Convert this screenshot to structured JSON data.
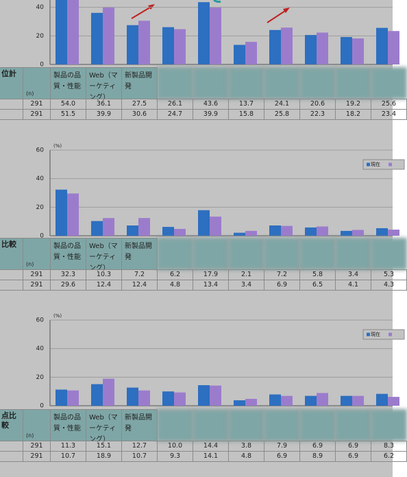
{
  "chart_data": [
    {
      "type": "bar",
      "ylim": [
        0,
        60
      ],
      "yticks": [
        0,
        20,
        40
      ],
      "grid": true,
      "categories": [
        "製品の品質・性能",
        "Web（マーケティング）",
        "新製品開発",
        null,
        null,
        null,
        null,
        null,
        null,
        null
      ],
      "series": [
        {
          "color": "#2d6fc0",
          "values": [
            54.0,
            36.1,
            27.5,
            26.1,
            43.6,
            13.7,
            24.1,
            20.6,
            19.2,
            25.6
          ],
          "value_labels": [
            "54.0",
            "36.1",
            "27.5",
            "26.1",
            "43.6",
            "13.7",
            "24.1",
            "20.6",
            "19.2",
            "25.6"
          ]
        },
        {
          "color": "#9b7ccc",
          "values": [
            51.5,
            39.9,
            30.6,
            24.7,
            39.9,
            15.8,
            25.8,
            22.3,
            18.2,
            23.4
          ],
          "value_labels": [
            "51.5",
            "39.9",
            "30.6",
            "24.7",
            "39.9",
            "15.8",
            "25.8",
            "22.3",
            "18.2",
            "23.4"
          ]
        }
      ]
    },
    {
      "type": "bar",
      "ylim": [
        0,
        60
      ],
      "yticks": [
        0,
        20,
        40,
        60
      ],
      "grid": true,
      "unit_label": "(%)",
      "legend": "top-right",
      "categories": [
        "製品の品質・性能",
        "Web（マーケティング）",
        "新製品開発",
        null,
        null,
        null,
        null,
        null,
        null,
        null
      ],
      "series": [
        {
          "name": "現在",
          "color": "#2d6fc0",
          "values": [
            32.3,
            10.3,
            7.2,
            6.2,
            17.9,
            2.1,
            7.2,
            5.8,
            3.4,
            5.3
          ],
          "value_labels": [
            "32.3",
            "10.3",
            "7.2",
            "6.2",
            "17.9",
            "2.1",
            "7.2",
            "5.8",
            "3.4",
            "5.3"
          ]
        },
        {
          "color": "#9b7ccc",
          "values": [
            29.6,
            12.4,
            12.4,
            4.8,
            13.4,
            3.4,
            6.9,
            6.5,
            4.1,
            4.3
          ],
          "value_labels": [
            "29.6",
            "12.4",
            "12.4",
            "4.8",
            "13.4",
            "3.4",
            "6.9",
            "6.5",
            "4.1",
            "4.3"
          ]
        }
      ]
    },
    {
      "type": "bar",
      "ylim": [
        0,
        60
      ],
      "yticks": [
        0,
        20,
        40,
        60
      ],
      "grid": true,
      "unit_label": "(%)",
      "legend": "top-right",
      "categories": [
        "製品の品質・性能",
        "Web（マーケティング）",
        "新製品開発",
        null,
        null,
        null,
        null,
        null,
        null,
        null
      ],
      "series": [
        {
          "name": "現在",
          "color": "#2d6fc0",
          "values": [
            11.3,
            15.1,
            12.7,
            10.0,
            14.4,
            3.8,
            7.9,
            6.9,
            6.9,
            8.3
          ],
          "value_labels": [
            "11.3",
            "15.1",
            "12.7",
            "10.0",
            "14.4",
            "3.8",
            "7.9",
            "6.9",
            "6.9",
            "8.3"
          ]
        },
        {
          "color": "#9b7ccc",
          "values": [
            10.7,
            18.9,
            10.7,
            9.3,
            14.1,
            4.8,
            6.9,
            8.9,
            6.9,
            6.2
          ],
          "value_labels": [
            "10.7",
            "18.9",
            "10.7",
            "9.3",
            "14.1",
            "4.8",
            "6.9",
            "8.9",
            "6.9",
            "6.2"
          ]
        }
      ]
    }
  ],
  "tables": [
    {
      "row_header": "位計",
      "n_label": "(n)",
      "n": [
        291,
        291
      ]
    },
    {
      "row_header": "比較",
      "n_label": "(n)",
      "n": [
        291,
        291
      ]
    },
    {
      "row_header": "点比較",
      "n_label": "(n)",
      "n": [
        291,
        291
      ]
    }
  ]
}
